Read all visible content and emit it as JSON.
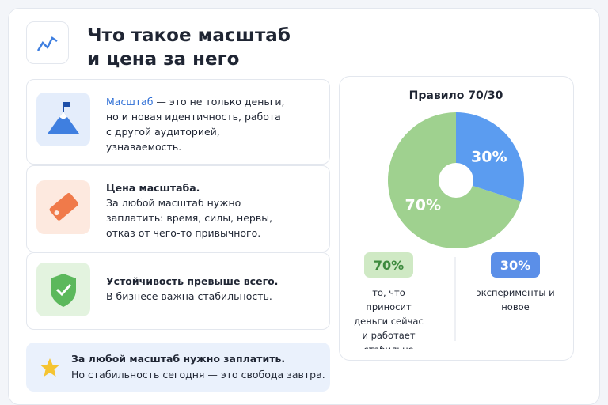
{
  "header": {
    "title_lines": [
      "Что такое масштаб",
      "и цена за него"
    ]
  },
  "cards": [
    {
      "term": "Масштаб",
      "text": " — это не только деньги, но и новая идентичность, работа с другой аудиторией, узнаваемость."
    },
    {
      "term": "Цена масштаба.",
      "text": "За любой масштаб нужно заплатить: время, силы, нервы, отказ от чего-то привычного."
    },
    {
      "term": "Устойчивость превыше всего.",
      "text": "В бизнесе важна стабильность."
    }
  ],
  "note": {
    "bold": "За любой масштаб нужно заплатить.",
    "text": "Но стабильность сегодня — это свобода завтра."
  },
  "chart_data": {
    "type": "pie",
    "title": "Правило 70/30",
    "categories": [
      "то, что приносит деньги сейчас и работает стабильно",
      "эксперименты и новое"
    ],
    "values": [
      70,
      30
    ],
    "value_labels": [
      "70%",
      "30%"
    ],
    "colors": [
      "#9fd18f",
      "#5b9cf0"
    ],
    "badge_colors": [
      "#cfe9c4",
      "#5b8fe8"
    ]
  }
}
